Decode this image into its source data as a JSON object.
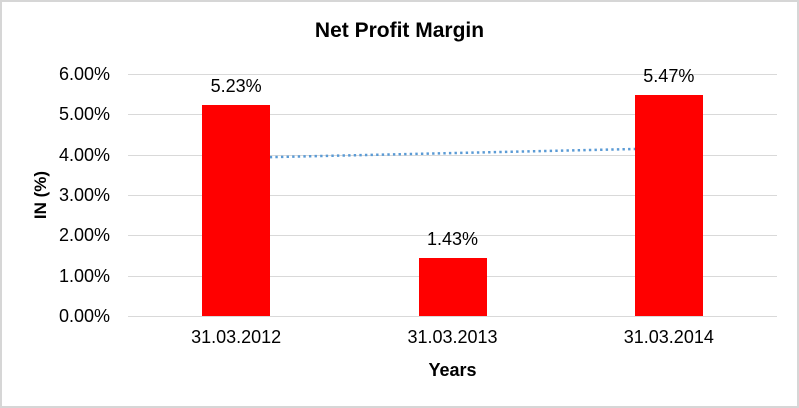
{
  "window": {
    "background": "#ffffff",
    "border_color": "#d6d6d6"
  },
  "chart_data": {
    "type": "bar",
    "title": "Net Profit Margin",
    "xlabel": "Years",
    "ylabel": "IN (%)",
    "categories": [
      "31.03.2012",
      "31.03.2013",
      "31.03.2014"
    ],
    "series": [
      {
        "name": "Net Profit Margin",
        "values": [
          5.23,
          1.43,
          5.47
        ],
        "color": "#ff0000"
      }
    ],
    "data_labels": [
      "5.23%",
      "1.43%",
      "5.47%"
    ],
    "ylim": [
      0,
      6
    ],
    "ytick_step": 1,
    "yticks": [
      "0.00%",
      "1.00%",
      "2.00%",
      "3.00%",
      "4.00%",
      "5.00%",
      "6.00%"
    ],
    "grid": true,
    "gridline_color": "#d9d9d9",
    "legend": "none",
    "text_color": "#000000",
    "trendline": {
      "type": "linear",
      "style": "dotted",
      "color": "#5b9bd5",
      "endpoints_percent": [
        3.92,
        4.16
      ]
    }
  }
}
